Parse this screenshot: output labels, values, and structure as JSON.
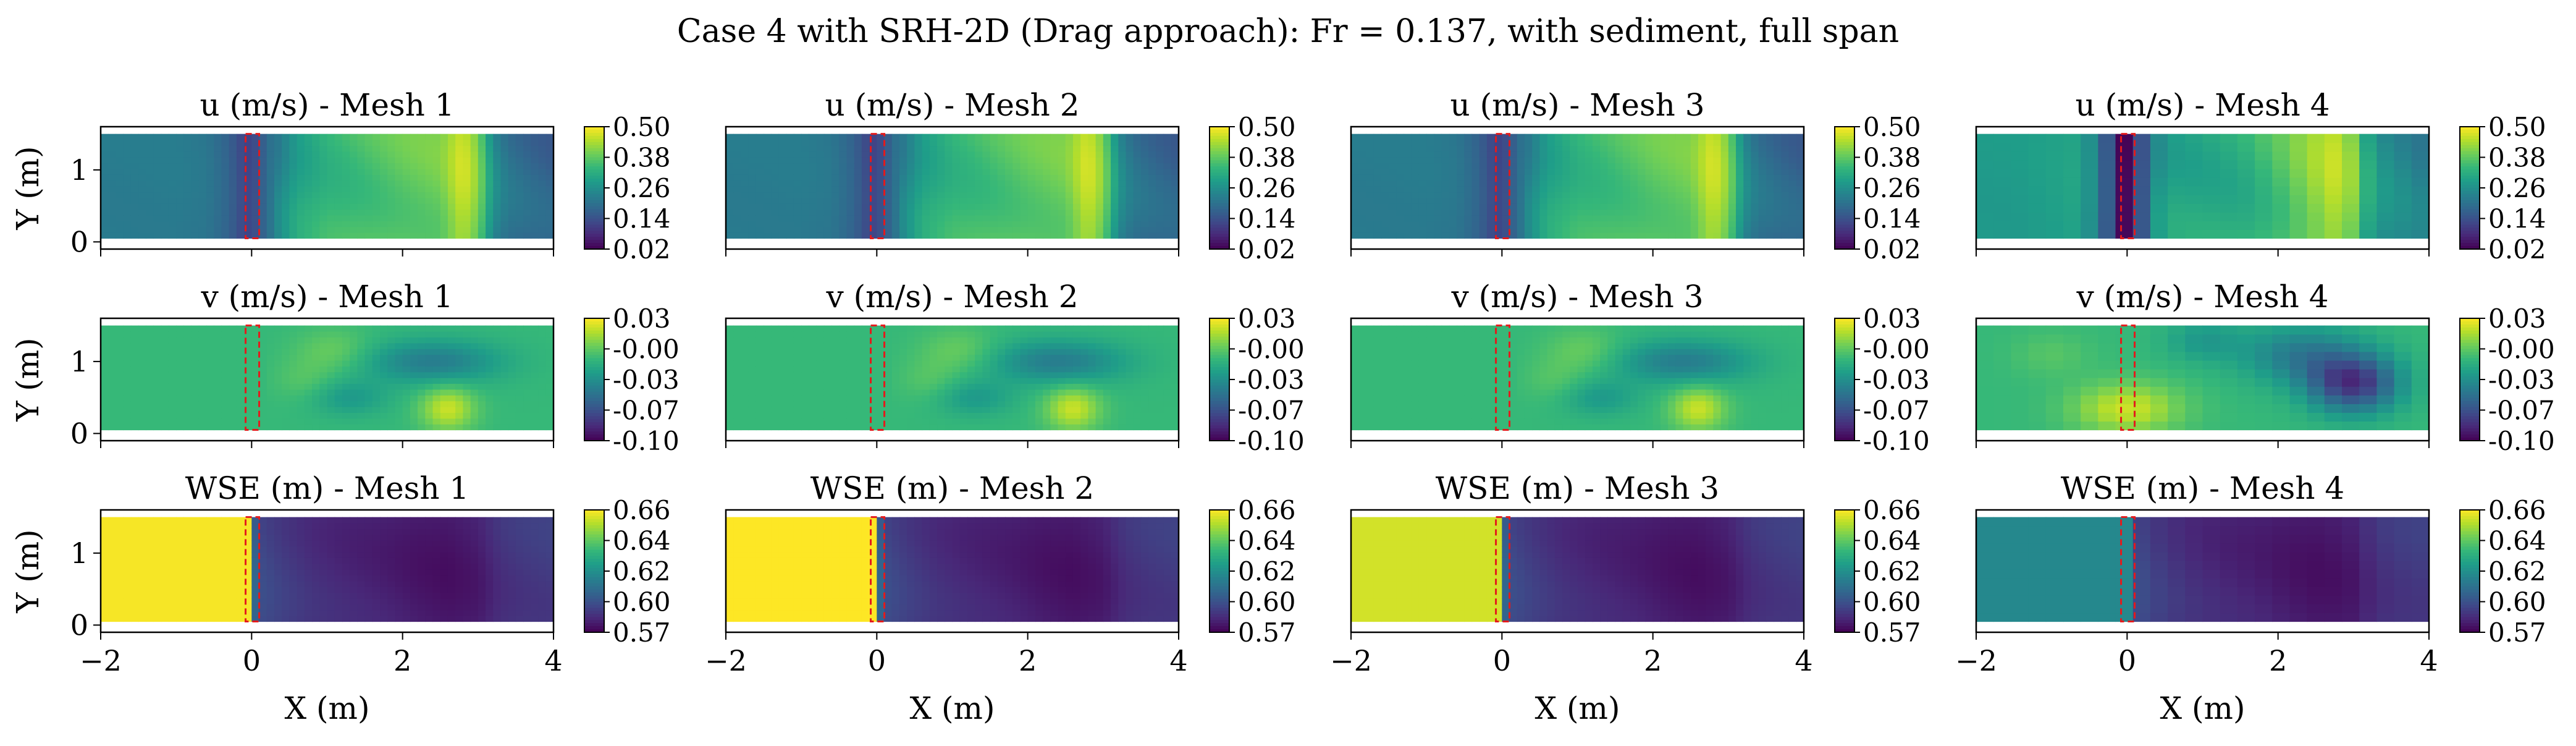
{
  "figure": {
    "suptitle": "Case 4 with SRH-2D (Drag approach): Fr = 0.137, with sediment, full span"
  },
  "chart_data": {
    "type": "heatmap",
    "title": "Case 4 with SRH-2D (Drag approach): Fr = 0.137, with sediment, full span",
    "xlabel": "X (m)",
    "ylabel": "Y (m)",
    "xlim": [
      -2,
      4
    ],
    "ylim": [
      -0.1,
      1.6
    ],
    "xticks": [
      "−2",
      "0",
      "2",
      "4"
    ],
    "yticks": [
      "0",
      "1"
    ],
    "domain_y": [
      0.05,
      1.5
    ],
    "structure_box": {
      "x": [
        -0.08,
        0.1
      ],
      "y": [
        0.05,
        1.5
      ],
      "color": "#e41a1c",
      "style": "dashed"
    },
    "colormap": "viridis",
    "variables": [
      {
        "key": "u",
        "title_prefix": "u (m/s)",
        "range": [
          0.02,
          0.5
        ],
        "cb_ticks": [
          "0.50",
          "0.38",
          "0.26",
          "0.14",
          "0.02"
        ]
      },
      {
        "key": "v",
        "title_prefix": "v (m/s)",
        "range": [
          -0.1,
          0.03
        ],
        "cb_ticks": [
          "0.03",
          "-0.00",
          "-0.03",
          "-0.07",
          "-0.10"
        ]
      },
      {
        "key": "wse",
        "title_prefix": "WSE (m)",
        "range": [
          0.57,
          0.66
        ],
        "cb_ticks": [
          "0.66",
          "0.64",
          "0.62",
          "0.60",
          "0.57"
        ]
      }
    ],
    "meshes": [
      "Mesh 1",
      "Mesh 2",
      "Mesh 3",
      "Mesh 4"
    ],
    "panel_titles": [
      [
        "u (m/s) - Mesh 1",
        "u (m/s) - Mesh 2",
        "u (m/s) - Mesh 3",
        "u (m/s) - Mesh 4"
      ],
      [
        "v (m/s) - Mesh 1",
        "v (m/s) - Mesh 2",
        "v (m/s) - Mesh 3",
        "v (m/s) - Mesh 4"
      ],
      [
        "WSE (m) - Mesh 1",
        "WSE (m) - Mesh 2",
        "WSE (m) - Mesh 3",
        "WSE (m) - Mesh 4"
      ]
    ],
    "u_profile_x": [
      -2.0,
      -1.5,
      -1.0,
      -0.6,
      -0.3,
      -0.1,
      0.0,
      0.1,
      0.3,
      0.6,
      1.0,
      1.5,
      2.0,
      2.5,
      2.8,
      3.0,
      3.2,
      3.4,
      3.7,
      4.0
    ],
    "u_profile_mesh123": [
      0.22,
      0.22,
      0.22,
      0.21,
      0.17,
      0.12,
      0.12,
      0.15,
      0.22,
      0.3,
      0.34,
      0.36,
      0.38,
      0.39,
      0.46,
      0.4,
      0.25,
      0.2,
      0.18,
      0.17
    ],
    "u_profile_mesh4": [
      0.28,
      0.28,
      0.29,
      0.3,
      0.18,
      0.04,
      0.02,
      0.06,
      0.25,
      0.3,
      0.31,
      0.32,
      0.36,
      0.42,
      0.45,
      0.4,
      0.3,
      0.26,
      0.24,
      0.22
    ],
    "v_background": -0.013,
    "v_features_mesh123": [
      {
        "x": 1.1,
        "y": 1.15,
        "value": 0.0,
        "rx": 0.5,
        "ry": 0.3
      },
      {
        "x": 2.4,
        "y": 1.0,
        "value": -0.045,
        "rx": 0.9,
        "ry": 0.3
      },
      {
        "x": 2.6,
        "y": 0.35,
        "value": 0.02,
        "rx": 0.35,
        "ry": 0.3
      },
      {
        "x": 1.3,
        "y": 0.5,
        "value": -0.03,
        "rx": 0.5,
        "ry": 0.25
      },
      {
        "x": 0.7,
        "y": 0.75,
        "value": -0.005,
        "rx": 0.4,
        "ry": 0.3
      }
    ],
    "v_features_mesh4": [
      {
        "x": 0.0,
        "y": 0.35,
        "value": 0.02,
        "rx": 0.7,
        "ry": 0.35
      },
      {
        "x": 3.0,
        "y": 0.7,
        "value": -0.08,
        "rx": 0.6,
        "ry": 0.4
      },
      {
        "x": 2.3,
        "y": 1.1,
        "value": -0.045,
        "rx": 0.8,
        "ry": 0.4
      },
      {
        "x": 1.0,
        "y": 1.3,
        "value": -0.03,
        "rx": 0.5,
        "ry": 0.3
      },
      {
        "x": -1.0,
        "y": 1.1,
        "value": -0.005,
        "rx": 0.5,
        "ry": 0.3
      }
    ],
    "wse_upstream": [
      0.659,
      0.66,
      0.654,
      0.612
    ],
    "wse_profile_x": [
      0.0,
      0.1,
      0.4,
      0.8,
      1.2,
      1.8,
      2.2,
      2.6,
      3.0,
      3.3,
      3.6,
      4.0
    ],
    "wse_profile": [
      0.605,
      0.59,
      0.586,
      0.582,
      0.58,
      0.578,
      0.576,
      0.575,
      0.577,
      0.583,
      0.585,
      0.586
    ]
  }
}
